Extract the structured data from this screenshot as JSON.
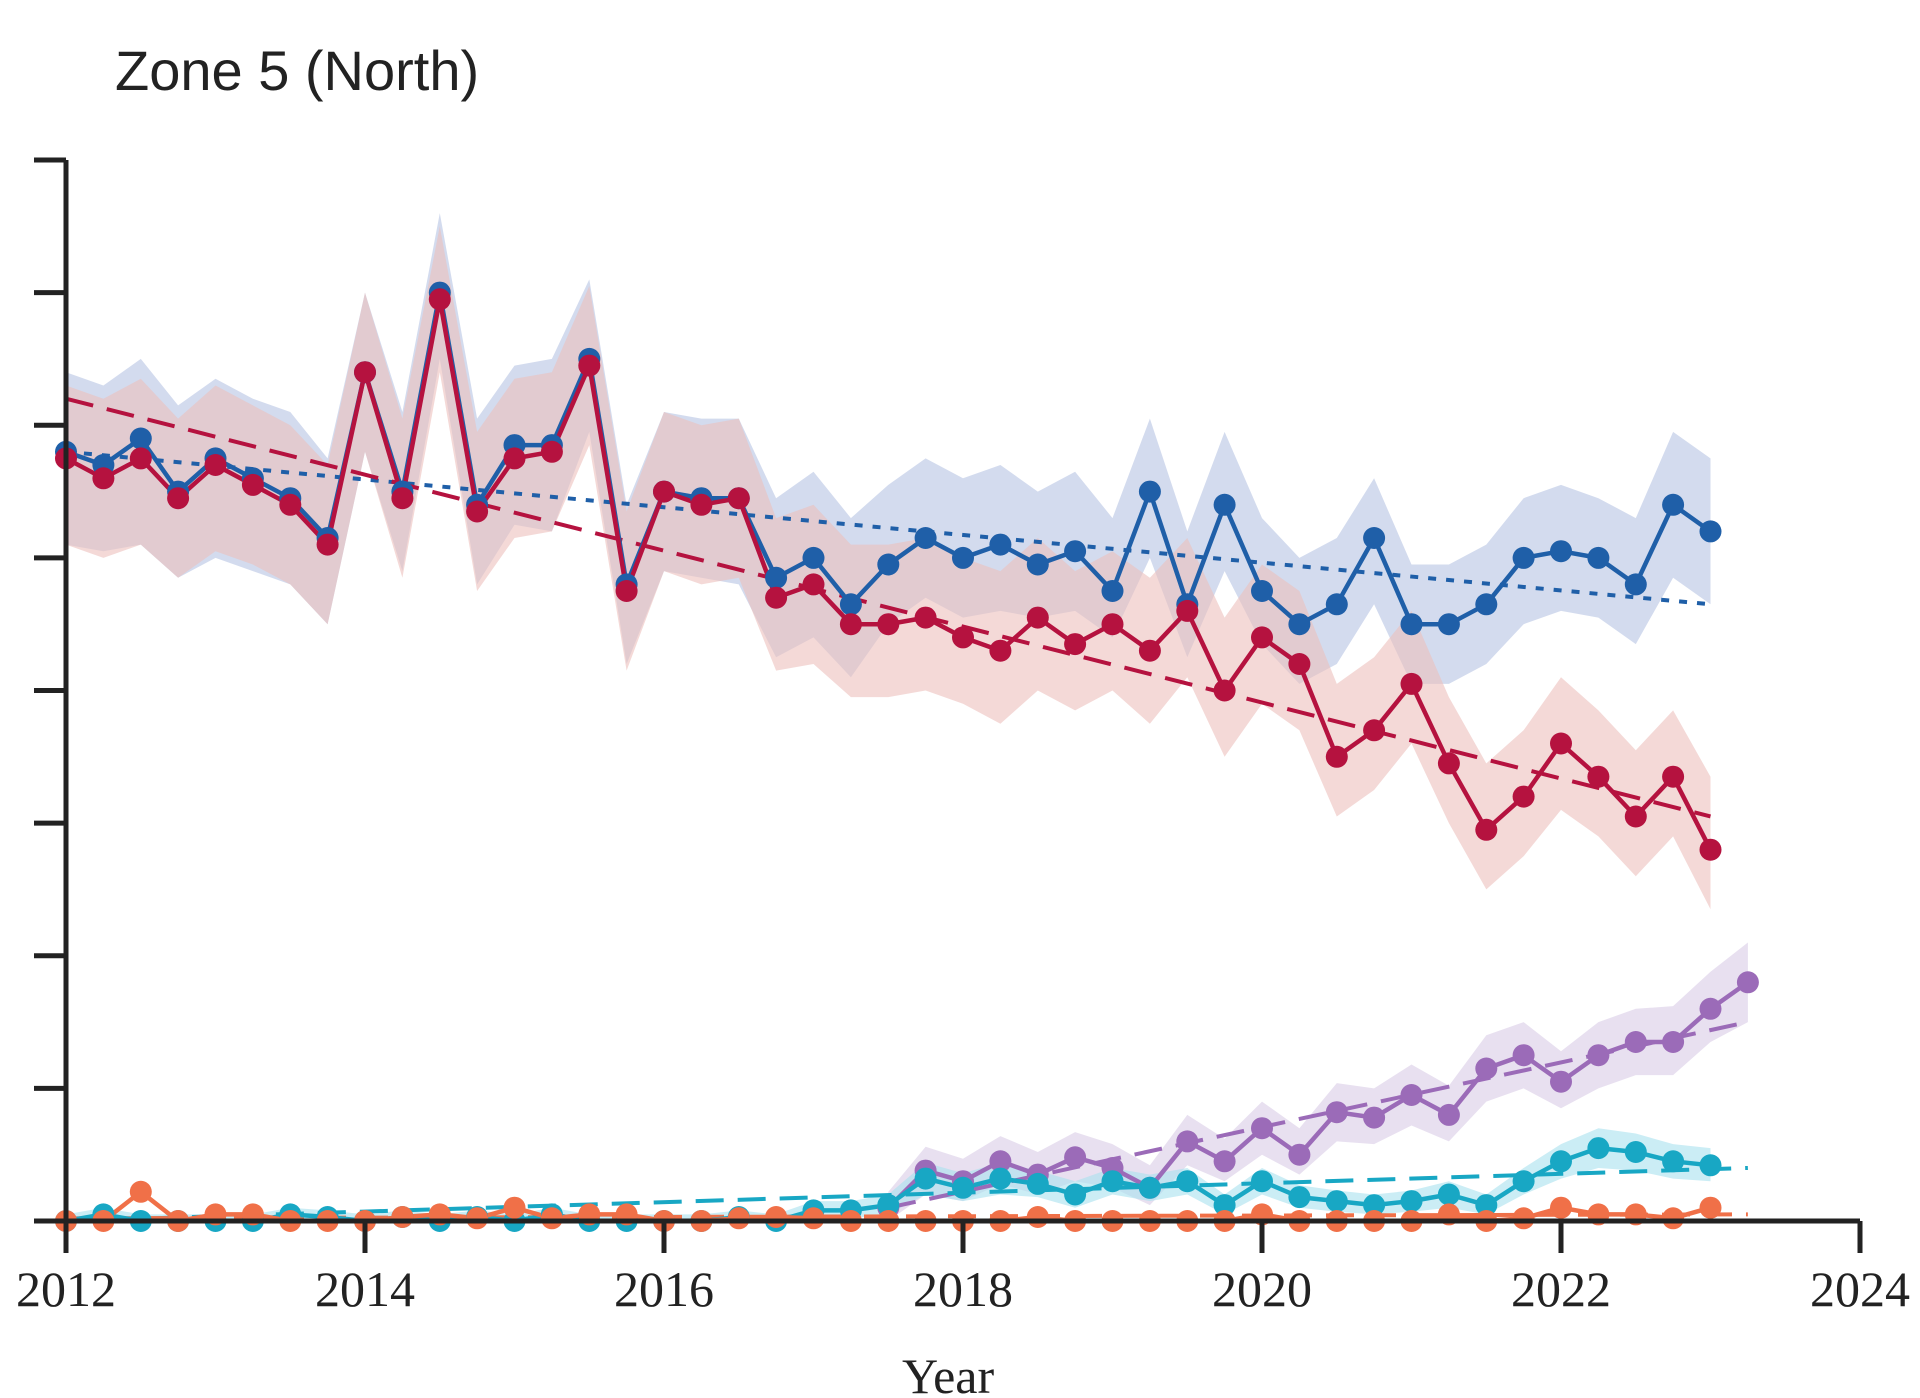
{
  "chart_data": {
    "type": "line",
    "title": "Zone 5 (North)",
    "xlabel": "Year",
    "ylabel": "",
    "xlim": [
      2012,
      2024
    ],
    "ylim": [
      0,
      8
    ],
    "x_ticks": [
      "2012",
      "2014",
      "2016",
      "2018",
      "2020",
      "2022",
      "2024"
    ],
    "y_tick_count": 9,
    "colors": {
      "blue": "#1f5fa8",
      "red": "#b5123f",
      "purple": "#9b6bb8",
      "teal": "#18a7c4",
      "orange": "#f07048",
      "blue_band": "#b6c3e2",
      "red_band": "#ecc0bd",
      "purple_band": "#d9cbe6",
      "teal_band": "#a8e1ee",
      "axis": "#222222"
    },
    "series": [
      {
        "name": "blue",
        "color": "#1f5fa8",
        "band_color": "#b6c3e2",
        "style": "solid-markers",
        "x_start": 2012,
        "x_step": 0.25,
        "values": [
          5.8,
          5.7,
          5.9,
          5.5,
          5.75,
          5.6,
          5.45,
          5.15,
          6.4,
          5.5,
          7.0,
          5.4,
          5.85,
          5.85,
          6.5,
          4.8,
          5.5,
          5.45,
          5.45,
          4.85,
          5.0,
          4.65,
          4.95,
          5.15,
          5.0,
          5.1,
          4.95,
          5.05,
          4.75,
          5.5,
          4.65,
          5.4,
          4.75,
          4.5,
          4.65,
          5.15,
          4.5,
          4.5,
          4.65,
          5.0,
          5.05,
          5.0,
          4.8,
          5.4,
          5.2
        ],
        "band_lower": [
          5.1,
          5.05,
          5.1,
          4.85,
          5.0,
          4.9,
          4.8,
          4.5,
          5.8,
          4.9,
          6.5,
          4.8,
          5.25,
          5.2,
          5.95,
          4.2,
          4.9,
          4.85,
          4.8,
          4.25,
          4.4,
          4.1,
          4.5,
          4.7,
          4.55,
          4.6,
          4.55,
          4.6,
          4.4,
          5.0,
          4.25,
          4.9,
          4.35,
          4.05,
          4.2,
          4.65,
          4.05,
          4.05,
          4.2,
          4.5,
          4.6,
          4.55,
          4.35,
          4.85,
          4.65
        ],
        "band_upper": [
          6.4,
          6.3,
          6.5,
          6.15,
          6.35,
          6.2,
          6.1,
          5.75,
          7.0,
          6.1,
          7.6,
          6.05,
          6.45,
          6.5,
          7.1,
          5.4,
          6.1,
          6.05,
          6.05,
          5.45,
          5.65,
          5.3,
          5.55,
          5.75,
          5.6,
          5.7,
          5.5,
          5.65,
          5.3,
          6.05,
          5.2,
          5.95,
          5.3,
          5.0,
          5.15,
          5.6,
          4.95,
          4.95,
          5.1,
          5.45,
          5.55,
          5.45,
          5.3,
          5.95,
          5.75
        ],
        "trend": [
          5.8,
          4.65
        ]
      },
      {
        "name": "red",
        "color": "#b5123f",
        "band_color": "#ecc0bd",
        "style": "solid-markers",
        "x_start": 2012,
        "x_step": 0.25,
        "values": [
          5.75,
          5.6,
          5.75,
          5.45,
          5.7,
          5.55,
          5.4,
          5.1,
          6.4,
          5.45,
          6.95,
          5.35,
          5.75,
          5.8,
          6.45,
          4.75,
          5.5,
          5.4,
          5.45,
          4.7,
          4.8,
          4.5,
          4.5,
          4.55,
          4.4,
          4.3,
          4.55,
          4.35,
          4.5,
          4.3,
          4.6,
          4.0,
          4.4,
          4.2,
          3.5,
          3.7,
          4.05,
          3.45,
          2.95,
          3.2,
          3.6,
          3.35,
          3.05,
          3.35,
          2.8
        ],
        "band_lower": [
          5.1,
          5.0,
          5.1,
          4.85,
          5.05,
          4.95,
          4.8,
          4.5,
          5.8,
          4.85,
          6.4,
          4.75,
          5.15,
          5.2,
          5.85,
          4.15,
          4.9,
          4.8,
          4.85,
          4.15,
          4.2,
          3.95,
          3.95,
          4.0,
          3.9,
          3.75,
          4.0,
          3.85,
          4.0,
          3.75,
          4.1,
          3.5,
          3.9,
          3.7,
          3.05,
          3.25,
          3.6,
          3.0,
          2.5,
          2.75,
          3.1,
          2.9,
          2.6,
          2.9,
          2.35
        ],
        "band_upper": [
          6.3,
          6.2,
          6.35,
          6.05,
          6.3,
          6.15,
          6.0,
          5.7,
          7.0,
          6.05,
          7.5,
          5.95,
          6.35,
          6.4,
          7.05,
          5.35,
          6.1,
          6.0,
          6.05,
          5.3,
          5.4,
          5.1,
          5.1,
          5.15,
          5.0,
          4.9,
          5.15,
          4.9,
          5.05,
          4.85,
          5.15,
          4.55,
          4.95,
          4.75,
          4.05,
          4.25,
          4.6,
          3.95,
          3.45,
          3.7,
          4.1,
          3.85,
          3.55,
          3.85,
          3.35
        ],
        "trend": [
          6.2,
          3.05
        ]
      },
      {
        "name": "purple",
        "color": "#9b6bb8",
        "band_color": "#d9cbe6",
        "style": "solid-markers",
        "x_start": 2017.5,
        "x_step": 0.25,
        "values": [
          0.1,
          0.38,
          0.3,
          0.45,
          0.35,
          0.48,
          0.4,
          0.25,
          0.6,
          0.45,
          0.7,
          0.5,
          0.82,
          0.78,
          0.95,
          0.8,
          1.15,
          1.25,
          1.05,
          1.25,
          1.35,
          1.35,
          1.6,
          1.8
        ],
        "band_lower": [
          0.0,
          0.2,
          0.15,
          0.28,
          0.2,
          0.3,
          0.25,
          0.12,
          0.42,
          0.3,
          0.5,
          0.35,
          0.6,
          0.58,
          0.72,
          0.6,
          0.9,
          1.0,
          0.85,
          1.0,
          1.1,
          1.1,
          1.35,
          1.5
        ],
        "band_upper": [
          0.22,
          0.56,
          0.47,
          0.64,
          0.52,
          0.67,
          0.58,
          0.42,
          0.8,
          0.62,
          0.9,
          0.7,
          1.04,
          1.0,
          1.18,
          1.02,
          1.4,
          1.5,
          1.28,
          1.5,
          1.6,
          1.62,
          1.88,
          2.1
        ],
        "trend_x": [
          2017.5,
          2023.25
        ],
        "trend": [
          0.1,
          1.5
        ]
      },
      {
        "name": "teal",
        "color": "#18a7c4",
        "band_color": "#a8e1ee",
        "style": "solid-markers",
        "x_start": 2012,
        "x_step": 0.25,
        "values": [
          0.0,
          0.05,
          0.0,
          0.0,
          0.0,
          0.0,
          0.05,
          0.03,
          0.0,
          0.03,
          0.0,
          0.03,
          0.0,
          0.05,
          0.0,
          0.0,
          0.0,
          0.0,
          0.03,
          0.0,
          0.08,
          0.08,
          0.12,
          0.32,
          0.25,
          0.32,
          0.28,
          0.2,
          0.3,
          0.25,
          0.3,
          0.12,
          0.3,
          0.18,
          0.15,
          0.12,
          0.15,
          0.2,
          0.12,
          0.3,
          0.45,
          0.55,
          0.52,
          0.45,
          0.42
        ],
        "band_lower": [
          0.0,
          0.0,
          0.0,
          0.0,
          0.0,
          0.0,
          0.0,
          0.0,
          0.0,
          0.0,
          0.0,
          0.0,
          0.0,
          0.0,
          0.0,
          0.0,
          0.0,
          0.0,
          0.0,
          0.0,
          0.02,
          0.02,
          0.05,
          0.2,
          0.15,
          0.2,
          0.18,
          0.1,
          0.2,
          0.15,
          0.2,
          0.05,
          0.2,
          0.1,
          0.07,
          0.05,
          0.07,
          0.1,
          0.05,
          0.2,
          0.32,
          0.4,
          0.38,
          0.32,
          0.3
        ],
        "band_upper": [
          0.05,
          0.1,
          0.05,
          0.05,
          0.05,
          0.05,
          0.1,
          0.08,
          0.05,
          0.08,
          0.05,
          0.08,
          0.05,
          0.1,
          0.05,
          0.05,
          0.05,
          0.05,
          0.08,
          0.05,
          0.15,
          0.15,
          0.2,
          0.44,
          0.36,
          0.44,
          0.38,
          0.3,
          0.4,
          0.35,
          0.4,
          0.2,
          0.4,
          0.27,
          0.23,
          0.2,
          0.23,
          0.3,
          0.2,
          0.4,
          0.58,
          0.7,
          0.66,
          0.58,
          0.55
        ],
        "trend_x": [
          2012,
          2023.25
        ],
        "trend": [
          0.0,
          0.4
        ]
      },
      {
        "name": "orange",
        "color": "#f07048",
        "band_color": "#f9c9b8",
        "style": "solid-markers",
        "x_start": 2012,
        "x_step": 0.25,
        "values": [
          0.0,
          0.0,
          0.22,
          0.0,
          0.05,
          0.05,
          0.0,
          0.0,
          0.0,
          0.03,
          0.05,
          0.02,
          0.1,
          0.02,
          0.05,
          0.05,
          0.0,
          0.0,
          0.02,
          0.03,
          0.02,
          0.0,
          0.0,
          0.0,
          0.0,
          0.0,
          0.03,
          0.0,
          0.0,
          0.0,
          0.0,
          0.0,
          0.05,
          0.0,
          0.0,
          0.0,
          0.0,
          0.05,
          0.0,
          0.02,
          0.1,
          0.05,
          0.05,
          0.02,
          0.1
        ],
        "trend_x": [
          2012,
          2023.25
        ],
        "trend": [
          0.02,
          0.05
        ]
      }
    ]
  }
}
